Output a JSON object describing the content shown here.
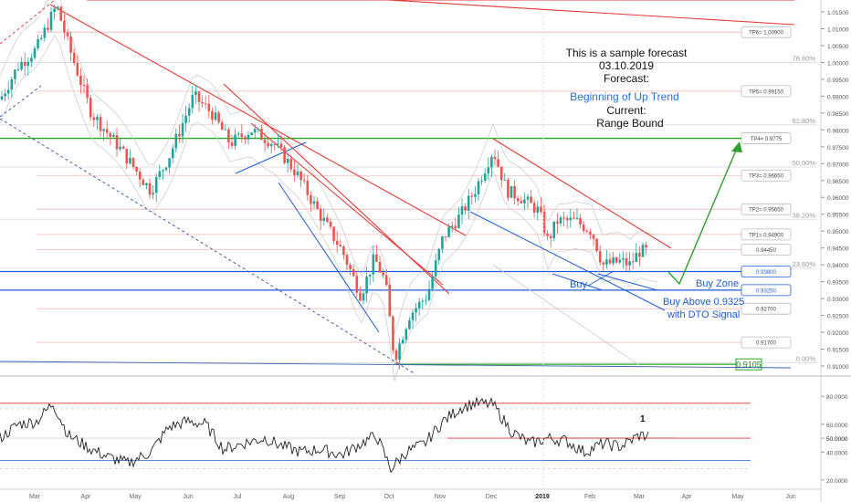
{
  "annotation": {
    "line1": "This is a sample forecast",
    "line2": "03.10.2019",
    "line3": "Forecast:",
    "forecast": "Beginning of Up Trend",
    "current_label": "Current:",
    "current": "Range Bound"
  },
  "labels": {
    "buy": "Buy",
    "buy_zone": "Buy Zone",
    "buy_above_1": "Buy Above 0.9325",
    "buy_above_2": "with DTO Signal",
    "oscillator_marker": "1"
  },
  "colors": {
    "up_candle": "#22a39a",
    "down_candle": "#ef5350",
    "resistance": "#e53935",
    "support": "#1e5bd8",
    "forecast_arrow": "#2e9e2e",
    "green_line": "#22aa22",
    "forecast_text": "#2a6fd6"
  },
  "chart_data": [
    {
      "type": "candlestick",
      "x_ticks": [
        "Mar",
        "Apr",
        "May",
        "Jun",
        "Jul",
        "Aug",
        "Sep",
        "Oct",
        "Nov",
        "Dec",
        "2019",
        "Feb",
        "Mar",
        "Apr",
        "May",
        "Jun"
      ],
      "y_ticks": [
        "1.01500",
        "1.01000",
        "1.00500",
        "1.00000",
        "0.99500",
        "0.99000",
        "0.98500",
        "0.98000",
        "0.97500",
        "0.97000",
        "0.96500",
        "0.96000",
        "0.95500",
        "0.95000",
        "0.94500",
        "0.94000",
        "0.93500",
        "0.93000",
        "0.92500",
        "0.92000",
        "0.91500",
        "0.91000"
      ],
      "ylim": [
        0.9075,
        1.0185
      ],
      "fib_levels": [
        {
          "label": "78.60%",
          "price": 1.0
        },
        {
          "label": "61.80%",
          "price": 0.9815
        },
        {
          "label": "50.00%",
          "price": 0.969
        },
        {
          "label": "38.20%",
          "price": 0.9535
        },
        {
          "label": "23.60%",
          "price": 0.939
        },
        {
          "label": "0.00%",
          "price": 0.911
        }
      ],
      "levels": [
        {
          "label": "TP6= 1.00900",
          "price": 1.009
        },
        {
          "label": "TP5= 0.99150",
          "price": 0.9915
        },
        {
          "label": "TP4= 0.9775",
          "price": 0.9775
        },
        {
          "label": "TP3= 0.96650",
          "price": 0.9665
        },
        {
          "label": "TP2= 0.95650",
          "price": 0.9565
        },
        {
          "label": "TP1= 0.94900",
          "price": 0.949
        },
        {
          "label": "0.94450",
          "price": 0.9445
        },
        {
          "label": "0.93800",
          "price": 0.938
        },
        {
          "label": "0.93250",
          "price": 0.9325
        },
        {
          "label": "0.92700",
          "price": 0.927
        },
        {
          "label": "0.91700",
          "price": 0.917
        }
      ],
      "highlight_price": {
        "label": "0.9105",
        "price": 0.9105
      }
    },
    {
      "type": "line",
      "name": "",
      "y_ticks": [
        "80.0000",
        "60.0000",
        "50.0000",
        "40.0000",
        "20.0000"
      ],
      "ylim": [
        14,
        88
      ],
      "levels": [
        75,
        71,
        50,
        34,
        28
      ]
    }
  ]
}
